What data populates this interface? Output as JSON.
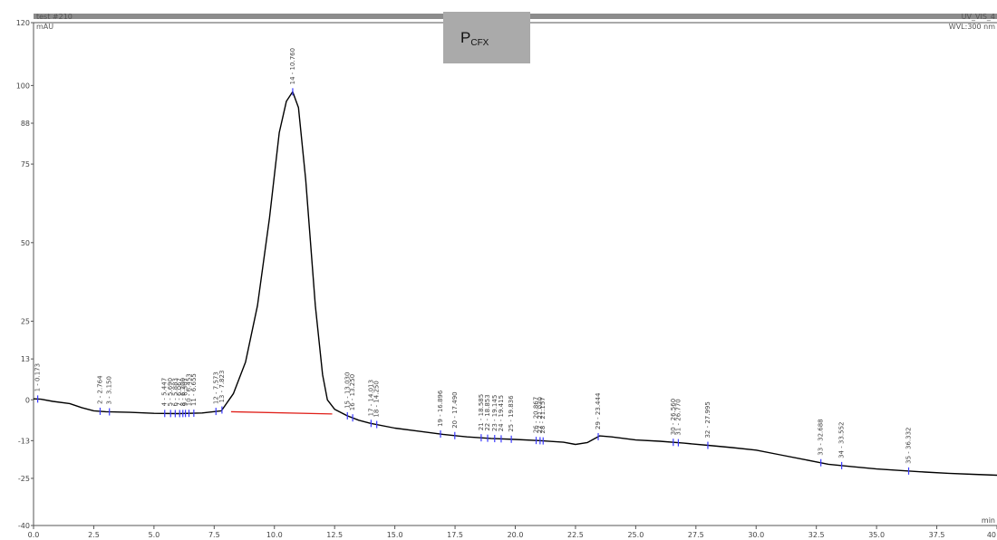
{
  "chart_data": {
    "type": "line",
    "title_main": "P",
    "title_sub": "CFX",
    "header_left_1": "test #210",
    "header_left_2": "mAU",
    "header_right_1": "UV_VIS_4",
    "header_right_2": "WVL:300 nm",
    "x_unit": "min",
    "xlim": [
      0,
      40
    ],
    "ylim": [
      -40,
      120
    ],
    "x_ticks": [
      "0.0",
      "2.5",
      "5.0",
      "7.5",
      "10.0",
      "12.5",
      "15.0",
      "17.5",
      "20.0",
      "22.5",
      "25.0",
      "27.5",
      "30.0",
      "32.5",
      "35.0",
      "37.5",
      "40"
    ],
    "y_ticks": [
      "-40",
      "-25",
      "-13",
      "0",
      "13",
      "25",
      "50",
      "75",
      "88",
      "100",
      "120"
    ],
    "y_tick_values": [
      -40,
      -25,
      -13,
      0,
      13,
      25,
      50,
      75,
      88,
      100,
      120
    ],
    "series": [
      {
        "x": [
          0.0,
          0.3,
          0.8,
          1.5,
          2.0,
          2.5,
          3.0,
          4.0,
          5.0,
          6.0,
          7.0,
          7.8,
          8.3,
          8.8,
          9.3,
          9.8,
          10.2,
          10.5,
          10.76,
          11.0,
          11.3,
          11.7,
          12.0,
          12.2,
          12.5,
          13.0,
          13.5,
          14.0,
          15.0,
          16.0,
          17.0,
          18.0,
          19.0,
          20.0,
          21.0,
          22.0,
          22.5,
          23.0,
          23.5,
          24.0,
          25.0,
          26.0,
          27.0,
          28.0,
          29.0,
          30.0,
          31.0,
          32.0,
          33.0,
          34.0,
          35.0,
          36.0,
          37.0,
          38.0,
          39.0,
          40.0
        ],
        "y": [
          0.3,
          0.2,
          -0.5,
          -1.2,
          -2.5,
          -3.5,
          -3.8,
          -4.0,
          -4.3,
          -4.4,
          -4.2,
          -3.5,
          2,
          12,
          30,
          58,
          85,
          95,
          98,
          93,
          70,
          30,
          8,
          0,
          -3,
          -5,
          -6.5,
          -7.5,
          -9,
          -10,
          -11,
          -11.8,
          -12.3,
          -12.6,
          -13,
          -13.5,
          -14.2,
          -13.6,
          -11.5,
          -11.8,
          -12.8,
          -13.2,
          -13.8,
          -14.5,
          -15.2,
          -16,
          -17.5,
          -19,
          -20.5,
          -21.3,
          -22,
          -22.5,
          -23,
          -23.4,
          -23.7,
          -24
        ]
      }
    ],
    "baseline": {
      "x": [
        8.2,
        12.4
      ],
      "y": [
        -3.8,
        -4.5
      ]
    },
    "peaks": [
      {
        "label": "1 - 0.173",
        "rt": 0.173
      },
      {
        "label": "2 - 2.764",
        "rt": 2.764
      },
      {
        "label": "3 - 3.150",
        "rt": 3.15
      },
      {
        "label": "4 - 5.447",
        "rt": 5.447
      },
      {
        "label": "5 - 5.690",
        "rt": 5.69
      },
      {
        "label": "6 - 5.883",
        "rt": 5.883
      },
      {
        "label": "7 - 6.067",
        "rt": 6.067
      },
      {
        "label": "8 - 6.200",
        "rt": 6.2
      },
      {
        "label": "9 - 6.307",
        "rt": 6.307
      },
      {
        "label": "10 - 6.453",
        "rt": 6.453
      },
      {
        "label": "11 - 6.655",
        "rt": 6.655
      },
      {
        "label": "12 - 7.573",
        "rt": 7.573
      },
      {
        "label": "13 - 7.823",
        "rt": 7.823
      },
      {
        "label": "14 - 10.760",
        "rt": 10.76
      },
      {
        "label": "15 - 13.030",
        "rt": 13.03
      },
      {
        "label": "16 - 13.250",
        "rt": 13.25
      },
      {
        "label": "17 - 14.013",
        "rt": 14.013
      },
      {
        "label": "18 - 14.250",
        "rt": 14.25
      },
      {
        "label": "19 - 16.896",
        "rt": 16.896
      },
      {
        "label": "20 - 17.490",
        "rt": 17.49
      },
      {
        "label": "21 - 18.585",
        "rt": 18.585
      },
      {
        "label": "22 - 18.853",
        "rt": 18.853
      },
      {
        "label": "23 - 19.145",
        "rt": 19.145
      },
      {
        "label": "24 - 19.415",
        "rt": 19.415
      },
      {
        "label": "25 - 19.836",
        "rt": 19.836
      },
      {
        "label": "26 - 20.867",
        "rt": 20.867
      },
      {
        "label": "27 - 21.030",
        "rt": 21.03
      },
      {
        "label": "28 - 21.157",
        "rt": 21.157
      },
      {
        "label": "29 - 23.444",
        "rt": 23.444
      },
      {
        "label": "30 - 26.560",
        "rt": 26.56
      },
      {
        "label": "31 - 26.770",
        "rt": 26.77
      },
      {
        "label": "32 - 27.995",
        "rt": 27.995
      },
      {
        "label": "33 - 32.688",
        "rt": 32.688
      },
      {
        "label": "34 - 33.552",
        "rt": 33.552
      },
      {
        "label": "35 - 36.332",
        "rt": 36.332
      }
    ],
    "colors": {
      "trace": "#000000",
      "baseline": "#e0201a",
      "marker": "#3a3aff",
      "header_bar": "#8c8c8c",
      "title_box": "#aaaaaa"
    }
  }
}
